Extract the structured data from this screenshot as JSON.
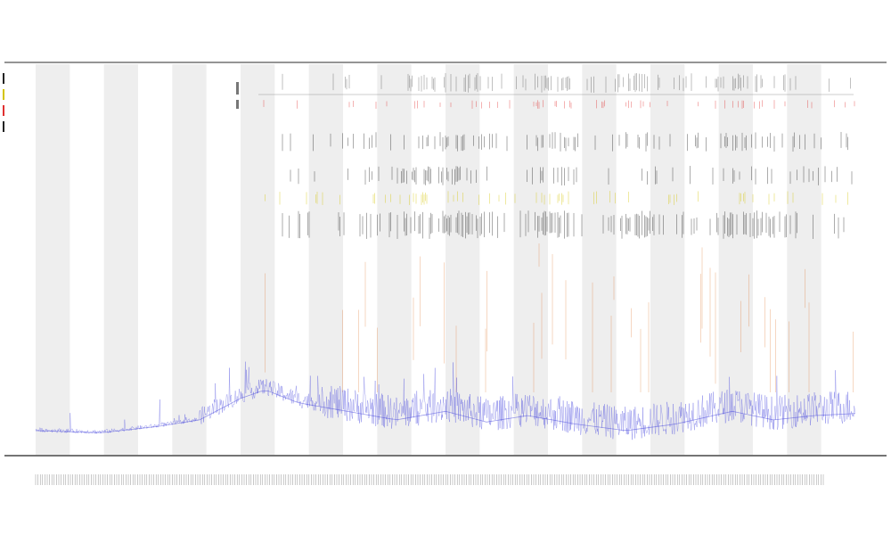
{
  "chart_data": {
    "type": "line",
    "title": "",
    "subtitle_lines": [
      "",
      ""
    ],
    "xlabel": "",
    "ylabel": "",
    "legend_position": "top-left",
    "grid": false,
    "background_bands": "alternating",
    "n_bands": 24,
    "ylim": [
      0,
      1
    ],
    "series": [
      {
        "kind": "noisy-signal",
        "color": "#3b3bdc",
        "profile": [
          [
            0.0,
            0.05
          ],
          [
            0.08,
            0.04
          ],
          [
            0.15,
            0.07
          ],
          [
            0.2,
            0.1
          ],
          [
            0.25,
            0.2
          ],
          [
            0.28,
            0.24
          ],
          [
            0.32,
            0.18
          ],
          [
            0.38,
            0.14
          ],
          [
            0.44,
            0.1
          ],
          [
            0.5,
            0.14
          ],
          [
            0.55,
            0.09
          ],
          [
            0.6,
            0.12
          ],
          [
            0.66,
            0.08
          ],
          [
            0.72,
            0.05
          ],
          [
            0.78,
            0.08
          ],
          [
            0.85,
            0.14
          ],
          [
            0.9,
            0.1
          ],
          [
            0.95,
            0.12
          ],
          [
            1.0,
            0.13
          ]
        ]
      }
    ],
    "event_tracks": [
      {
        "color": "#555555",
        "density": 0.45
      },
      {
        "color": "#e03030",
        "density": 0.25
      },
      {
        "color": "#222222",
        "density": 0.4
      },
      {
        "color": "#222222",
        "density": 0.35
      },
      {
        "color": "#d4c400",
        "density": 0.25
      },
      {
        "color": "#222222",
        "density": 0.55
      },
      {
        "color": "#e07020",
        "density": 0.2
      }
    ]
  }
}
